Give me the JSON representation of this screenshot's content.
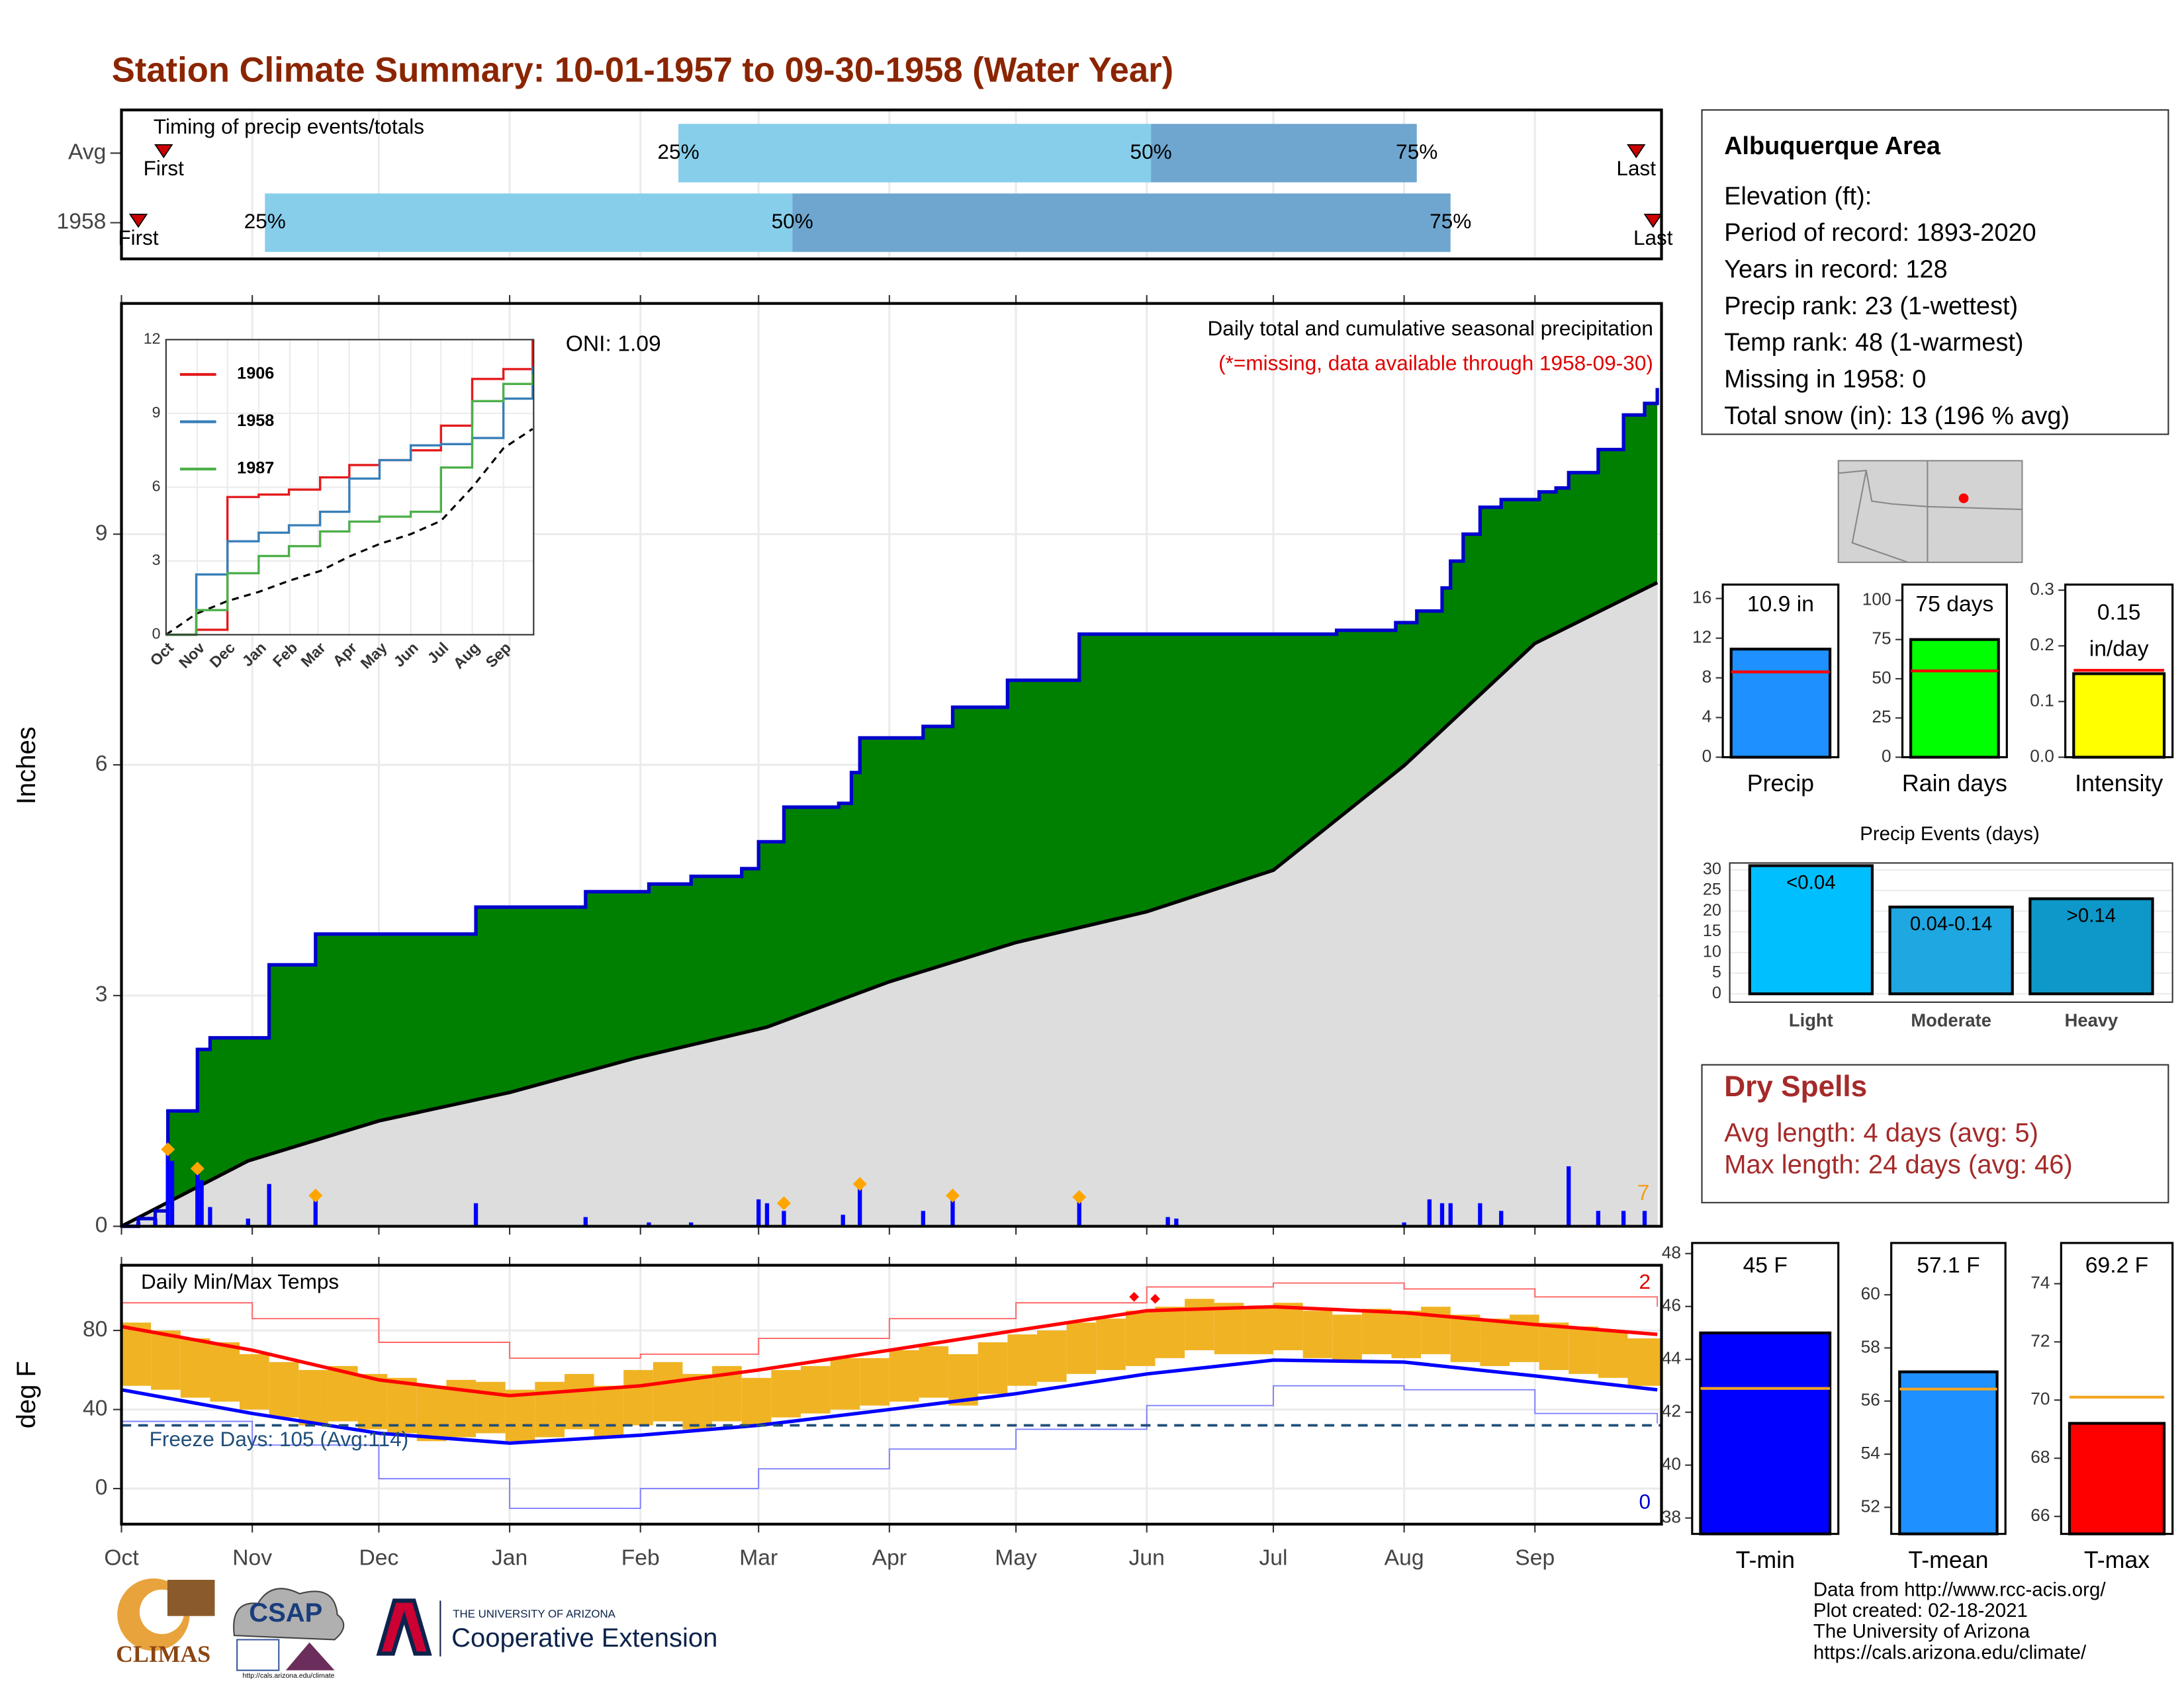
{
  "title": "Station Climate Summary: 10-01-1957 to 09-30-1958 (Water Year)",
  "xaxis": {
    "xlim": [
      0,
      365
    ],
    "xticks": [
      {
        "value": 0,
        "label": "Oct"
      },
      {
        "value": 31,
        "label": "Nov"
      },
      {
        "value": 61,
        "label": "Dec"
      },
      {
        "value": 92,
        "label": "Jan"
      },
      {
        "value": 123,
        "label": "Feb"
      },
      {
        "value": 151,
        "label": "Mar"
      },
      {
        "value": 182,
        "label": "Apr"
      },
      {
        "value": 212,
        "label": "May"
      },
      {
        "value": 243,
        "label": "Jun"
      },
      {
        "value": 273,
        "label": "Jul"
      },
      {
        "value": 304,
        "label": "Aug"
      },
      {
        "value": 335,
        "label": "Sep"
      }
    ]
  },
  "timing": {
    "title": "Timing of precip events/totals",
    "marker_labels": [
      "First",
      "25%",
      "50%",
      "75%",
      "Last"
    ],
    "colors": [
      "#87ceeb",
      "#6ea6cf",
      "#cc0000"
    ],
    "rows": [
      {
        "label": "Avg",
        "days": [
          10,
          132,
          244,
          307,
          359
        ]
      },
      {
        "label": "1958",
        "days": [
          4,
          34,
          159,
          315,
          363
        ]
      }
    ]
  },
  "precip": {
    "type": "area",
    "ylabel": "Inches",
    "ylim": [
      0,
      12
    ],
    "yticks": [
      0,
      3,
      6,
      9
    ],
    "oni": "ONI: 1.09",
    "subtitle": "Daily total and cumulative seasonal precipitation",
    "note": "(*=missing, data available through 1958-09-30)",
    "count_label": "7",
    "cumulative": {
      "name": "1958",
      "color": "#0000cd",
      "fill": "#008000",
      "x": [
        0,
        4,
        8,
        11,
        18,
        21,
        35,
        46,
        84,
        110,
        125,
        135,
        147,
        151,
        157,
        170,
        173,
        175,
        190,
        197,
        210,
        227,
        288,
        302,
        307,
        313,
        315,
        318,
        322,
        327,
        336,
        340,
        343,
        350,
        356,
        361,
        364
      ],
      "values": [
        0,
        0.1,
        0.2,
        1.5,
        2.3,
        2.45,
        3.4,
        3.8,
        4.15,
        4.35,
        4.45,
        4.55,
        4.65,
        5.0,
        5.45,
        5.5,
        5.9,
        6.35,
        6.5,
        6.75,
        7.1,
        7.7,
        7.75,
        7.85,
        8.0,
        8.3,
        8.65,
        9.0,
        9.35,
        9.45,
        9.55,
        9.6,
        9.8,
        10.1,
        10.55,
        10.7,
        10.9
      ]
    },
    "average": {
      "color": "#000000",
      "fill": "#dddddd",
      "x": [
        0,
        30,
        61,
        92,
        122,
        153,
        182,
        212,
        243,
        273,
        304,
        335,
        364
      ],
      "values": [
        0,
        0.85,
        1.37,
        1.74,
        2.19,
        2.59,
        3.18,
        3.69,
        4.09,
        4.63,
        5.99,
        7.58,
        8.37
      ]
    },
    "daily": {
      "color": "#0000ff",
      "x": [
        4,
        8,
        11,
        12,
        18,
        19,
        21,
        30,
        35,
        46,
        84,
        110,
        125,
        135,
        151,
        153,
        157,
        171,
        175,
        190,
        197,
        227,
        248,
        250,
        304,
        310,
        313,
        315,
        322,
        327,
        343,
        350,
        356,
        361
      ],
      "values": [
        0.05,
        0.1,
        1.0,
        0.85,
        0.7,
        0.6,
        0.25,
        0.1,
        0.55,
        0.4,
        0.3,
        0.12,
        0.05,
        0.05,
        0.35,
        0.3,
        0.2,
        0.15,
        0.55,
        0.2,
        0.4,
        0.4,
        0.12,
        0.1,
        0.05,
        0.35,
        0.3,
        0.3,
        0.3,
        0.2,
        0.78,
        0.2,
        0.2,
        0.2
      ]
    },
    "snow": {
      "color": "#ffa500",
      "x": [
        11,
        18,
        46,
        157,
        175,
        197,
        227
      ],
      "values": [
        1.0,
        0.75,
        0.4,
        0.3,
        0.55,
        0.4,
        0.38
      ]
    }
  },
  "inset": {
    "ylim": [
      0,
      12
    ],
    "yticks": [
      0,
      3,
      6,
      9,
      12
    ],
    "x": [
      0,
      30,
      61,
      92,
      122,
      153,
      182,
      212,
      243,
      273,
      304,
      335,
      364
    ],
    "series": [
      {
        "name": "1906",
        "color": "#e41a1c",
        "values": [
          0,
          0.2,
          5.6,
          5.7,
          5.9,
          6.4,
          6.9,
          7.1,
          7.5,
          8.5,
          10.4,
          10.8,
          12.0
        ]
      },
      {
        "name": "1958",
        "color": "#377eb8",
        "values": [
          0,
          2.45,
          3.8,
          4.15,
          4.45,
          5.0,
          6.35,
          7.1,
          7.7,
          7.75,
          8.0,
          9.6,
          10.9
        ]
      },
      {
        "name": "1987",
        "color": "#4daf4a",
        "values": [
          0,
          1.0,
          2.5,
          3.2,
          3.6,
          4.2,
          4.6,
          4.8,
          5.0,
          6.8,
          9.5,
          10.2,
          10.6
        ]
      }
    ]
  },
  "temp": {
    "title": "Daily Min/Max Temps",
    "ylabel": "deg F",
    "ylim": [
      -18,
      113
    ],
    "yticks": [
      0,
      40,
      80
    ],
    "freeze": {
      "value": 32,
      "label": "Freeze Days: 105 (Avg:114)",
      "color": "#1f4e79"
    },
    "record_max_count": "2",
    "record_min_count": "0",
    "x": [
      0,
      31,
      61,
      92,
      123,
      151,
      182,
      212,
      243,
      273,
      304,
      335,
      364
    ],
    "record_max": {
      "color": "#ff6666",
      "values": [
        94,
        86,
        74,
        66,
        68,
        76,
        86,
        94,
        102,
        104,
        101,
        97,
        92
      ]
    },
    "avg_max": {
      "color": "#ff0000",
      "values": [
        82,
        70,
        55,
        47,
        52,
        60,
        70,
        80,
        90,
        92,
        89,
        83,
        78
      ]
    },
    "avg_min": {
      "color": "#0000ff",
      "values": [
        50,
        38,
        28,
        23,
        27,
        32,
        40,
        48,
        58,
        65,
        64,
        57,
        50
      ]
    },
    "record_min": {
      "color": "#8080ff",
      "values": [
        34,
        22,
        5,
        -10,
        0,
        10,
        20,
        30,
        42,
        52,
        50,
        38,
        33
      ]
    },
    "daily": {
      "color": "#f0b323",
      "x": [
        0,
        7,
        14,
        21,
        28,
        35,
        42,
        49,
        56,
        63,
        70,
        77,
        84,
        91,
        98,
        105,
        112,
        119,
        126,
        133,
        140,
        147,
        154,
        161,
        168,
        175,
        182,
        189,
        196,
        203,
        210,
        217,
        224,
        231,
        238,
        245,
        252,
        259,
        266,
        273,
        280,
        287,
        294,
        301,
        308,
        315,
        322,
        329,
        336,
        343,
        350,
        357
      ],
      "max": [
        84,
        80,
        76,
        74,
        68,
        64,
        60,
        62,
        58,
        56,
        52,
        55,
        54,
        50,
        54,
        58,
        52,
        60,
        64,
        58,
        62,
        56,
        60,
        62,
        66,
        66,
        70,
        72,
        68,
        74,
        78,
        80,
        84,
        86,
        90,
        92,
        96,
        94,
        92,
        94,
        90,
        88,
        91,
        90,
        92,
        88,
        86,
        88,
        84,
        82,
        80,
        76
      ],
      "min": [
        52,
        50,
        46,
        44,
        40,
        36,
        32,
        34,
        30,
        28,
        24,
        26,
        28,
        24,
        26,
        30,
        26,
        32,
        34,
        30,
        34,
        32,
        36,
        38,
        40,
        42,
        44,
        46,
        42,
        48,
        52,
        54,
        58,
        60,
        62,
        66,
        70,
        68,
        68,
        70,
        66,
        64,
        68,
        66,
        68,
        64,
        62,
        64,
        60,
        58,
        56,
        52
      ]
    },
    "records": {
      "color": "#ff0000",
      "x": [
        240,
        245
      ],
      "values": [
        97,
        96
      ]
    }
  },
  "station": {
    "title": "Albuquerque Area",
    "lines": [
      "Elevation (ft):",
      "Period of record: 1893-2020",
      "Years in record: 128",
      "Precip rank: 23 (1-wettest)",
      "Temp rank: 48 (1-warmest)",
      "Missing in 1958: 0",
      "Total snow (in): 13 (196 % avg)"
    ]
  },
  "totals": [
    {
      "label": "Precip",
      "value": 10.9,
      "value_label": "10.9 in",
      "average": 8.6,
      "average_color": "#ff0000",
      "ylim": [
        0,
        17.4
      ],
      "yticks": [
        0,
        4,
        8,
        12,
        16
      ],
      "color": "#1e90ff"
    },
    {
      "label": "Rain days",
      "value": 75,
      "value_label": "75 days",
      "average": 55,
      "average_color": "#ff0000",
      "ylim": [
        0,
        110
      ],
      "yticks": [
        0,
        25,
        50,
        75,
        100
      ],
      "color": "#00ff00"
    },
    {
      "label": "Intensity",
      "value": 0.15,
      "value_label": "0.15",
      "unit": "in/day",
      "average": 0.156,
      "average_color": "#ff0000",
      "ylim": [
        0,
        0.31
      ],
      "yticks": [
        {
          "value": 0,
          "label": "0.0"
        },
        0.1,
        0.2,
        0.3
      ],
      "color": "#ffff00"
    }
  ],
  "events": {
    "type": "bar",
    "title": "Precip Events (days)",
    "categories": [
      "Light",
      "Moderate",
      "Heavy"
    ],
    "thresholds": [
      "<0.04",
      "0.04-0.14",
      ">0.14"
    ],
    "values": [
      31,
      21,
      23
    ],
    "colors": [
      "#00bfff",
      "#1ea7e0",
      "#0d98c9"
    ],
    "ylim": [
      0,
      31.6
    ],
    "yticks": [
      0,
      5,
      10,
      15,
      20,
      25,
      30
    ]
  },
  "dry_spells": {
    "title": "Dry Spells",
    "lines": [
      "Avg length: 4 days (avg: 5)",
      "Max length: 24 days (avg: 46)"
    ]
  },
  "temps": [
    {
      "label": "T-min",
      "value": 45,
      "value_label": "45 F",
      "average": 42.9,
      "average_color": "#f5a623",
      "ylim": [
        37.4,
        48.4
      ],
      "yticks": [
        38,
        40,
        42,
        44,
        46,
        48
      ],
      "color": "#0000ff"
    },
    {
      "label": "T-mean",
      "value": 57.1,
      "value_label": "57.1 F",
      "average": 56.45,
      "average_color": "#f5a623",
      "ylim": [
        51.0,
        61.95
      ],
      "yticks": [
        52,
        54,
        56,
        58,
        60
      ],
      "color": "#1e90ff"
    },
    {
      "label": "T-max",
      "value": 69.2,
      "value_label": "69.2 F",
      "average": 70.1,
      "average_color": "#f5a623",
      "ylim": [
        65.4,
        75.4
      ],
      "yticks": [
        66,
        68,
        70,
        72,
        74
      ],
      "color": "#ff0000"
    }
  ],
  "footer": [
    "Data from http://www.rcc-acis.org/",
    "Plot created: 02-18-2021",
    "The University of Arizona",
    "https://cals.arizona.edu/climate/"
  ],
  "logos": {
    "climas": "CLIMAS",
    "csap": "CSAP",
    "csap_url": "http://cals.arizona.edu/climate",
    "university": "THE UNIVERSITY OF ARIZONA",
    "extension": "Cooperative Extension"
  }
}
